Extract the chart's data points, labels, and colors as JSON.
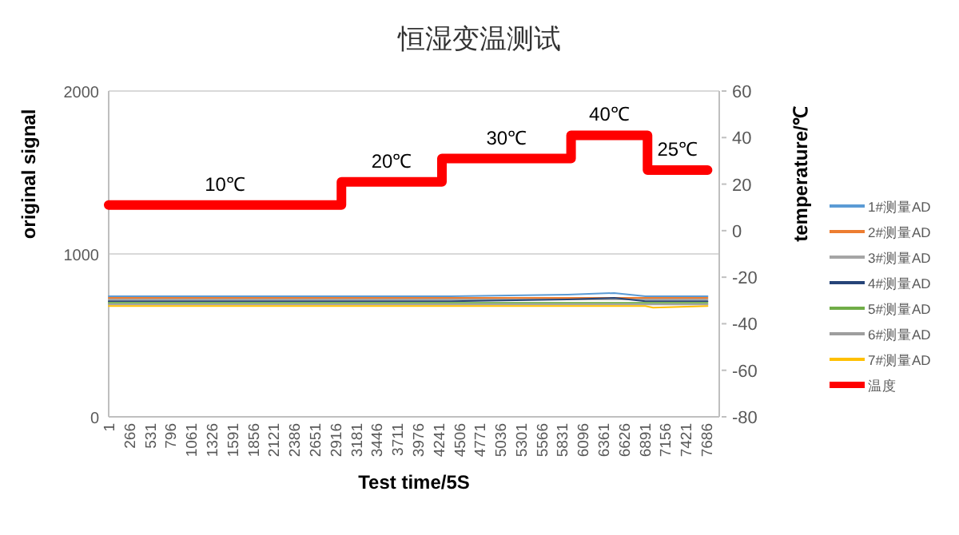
{
  "chart_data": {
    "type": "line",
    "title": "恒湿变温测试",
    "xlabel": "Test time/5S",
    "ylabel": "original signal",
    "y2label": "temperature/℃",
    "xlim": [
      1,
      7850
    ],
    "xticks": [
      1,
      266,
      531,
      796,
      1061,
      1326,
      1591,
      1856,
      2121,
      2386,
      2651,
      2916,
      3181,
      3446,
      3711,
      3976,
      4241,
      4506,
      4771,
      5036,
      5301,
      5566,
      5831,
      6096,
      6361,
      6626,
      6891,
      7156,
      7421,
      7686
    ],
    "ylim": [
      0,
      2000
    ],
    "yticks": [
      0,
      1000,
      2000
    ],
    "y2lim": [
      -80,
      60
    ],
    "y2ticks": [
      -80,
      -60,
      -40,
      -20,
      0,
      20,
      40,
      60
    ],
    "grid": "y",
    "legend": "right",
    "marker": "none",
    "line_style": "solid",
    "series": [
      {
        "name": "1#测量AD",
        "color": "#5b9bd5",
        "x": [
          1,
          3000,
          4400,
          5900,
          6500,
          6900,
          7700
        ],
        "values": [
          740,
          740,
          740,
          750,
          760,
          740,
          740
        ]
      },
      {
        "name": "2#测量AD",
        "color": "#ed7d31",
        "x": [
          1,
          3000,
          4400,
          6000,
          6900,
          7700
        ],
        "values": [
          730,
          730,
          730,
          730,
          730,
          730
        ]
      },
      {
        "name": "3#测量AD",
        "color": "#a5a5a5",
        "x": [
          1,
          3000,
          4400,
          6000,
          6900,
          7700
        ],
        "values": [
          720,
          720,
          720,
          720,
          720,
          720
        ]
      },
      {
        "name": "4#测量AD",
        "color": "#264478",
        "x": [
          1,
          3000,
          4400,
          5900,
          6500,
          6900,
          7700
        ],
        "values": [
          710,
          710,
          710,
          720,
          730,
          710,
          710
        ]
      },
      {
        "name": "5#测量AD",
        "color": "#70ad47",
        "x": [
          1,
          3000,
          4400,
          6000,
          6900,
          7700
        ],
        "values": [
          700,
          700,
          700,
          700,
          700,
          700
        ]
      },
      {
        "name": "6#测量AD",
        "color": "#9e9e9e",
        "x": [
          1,
          3000,
          4400,
          6000,
          6900,
          7700
        ],
        "values": [
          690,
          690,
          690,
          690,
          690,
          690
        ]
      },
      {
        "name": "7#测量AD",
        "color": "#ffc000",
        "x": [
          1,
          3000,
          4400,
          6000,
          6900,
          7000,
          7700
        ],
        "values": [
          680,
          680,
          680,
          680,
          680,
          670,
          680
        ]
      },
      {
        "name": "温度",
        "color": "#ff0000",
        "axis": "y2",
        "type": "step",
        "x": [
          1,
          2993,
          4285,
          5945,
          6928,
          7700
        ],
        "values": [
          11,
          21,
          31,
          41,
          26,
          26
        ]
      }
    ],
    "annotations": [
      "10℃",
      "20℃",
      "30℃",
      "40℃",
      "25℃"
    ]
  }
}
